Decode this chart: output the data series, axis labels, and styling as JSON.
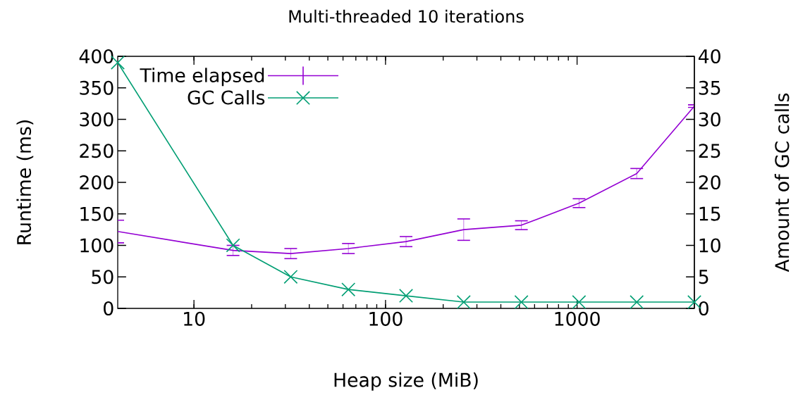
{
  "chart_data": {
    "type": "line",
    "title": "Multi-threaded 10 iterations",
    "xlabel": "Heap size (MiB)",
    "ylabel": "Runtime (ms)",
    "y2label": "Amount of GC calls",
    "x": [
      4,
      16,
      32,
      64,
      128,
      256,
      512,
      1024,
      2048,
      4096
    ],
    "series": [
      {
        "name": "Time elapsed",
        "color": "#9400d3",
        "values": [
          122,
          92,
          87,
          95,
          106,
          125,
          132,
          167,
          214,
          321
        ],
        "errors": [
          18,
          8,
          8,
          8,
          8,
          17,
          7,
          7,
          8,
          2
        ],
        "marker": "none"
      },
      {
        "name": "GC Calls",
        "color": "#009e73",
        "values": [
          39,
          10,
          5,
          3,
          2,
          1,
          1,
          1,
          1,
          1
        ],
        "axis": "y2",
        "marker": "cross"
      }
    ],
    "log": "x",
    "xlim": [
      4,
      4096
    ],
    "xticks": [
      10,
      100,
      1000
    ],
    "ylim": [
      0,
      400
    ],
    "yticks": [
      0,
      50,
      100,
      150,
      200,
      250,
      300,
      350,
      400
    ],
    "y2lim": [
      0,
      40
    ],
    "y2ticks": [
      0,
      5,
      10,
      15,
      20,
      25,
      30,
      35,
      40
    ],
    "legend": "top left",
    "grid": false
  }
}
